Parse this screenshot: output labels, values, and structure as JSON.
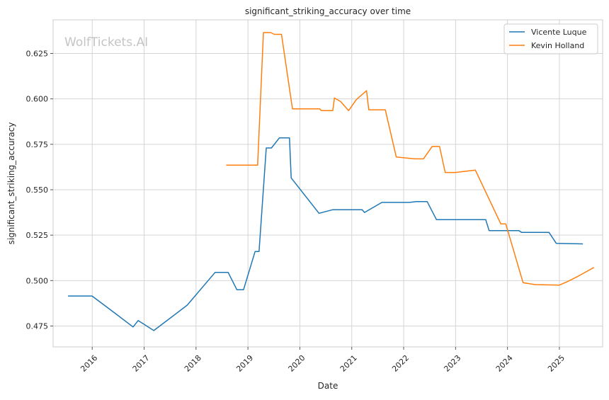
{
  "chart_data": {
    "type": "line",
    "title": "significant_striking_accuracy over time",
    "xlabel": "Date",
    "ylabel": "significant_striking_accuracy",
    "watermark": "WolfTickets.AI",
    "x_ticks": [
      "2016",
      "2017",
      "2018",
      "2019",
      "2020",
      "2021",
      "2022",
      "2023",
      "2024",
      "2025"
    ],
    "y_ticks": [
      "0.475",
      "0.500",
      "0.525",
      "0.550",
      "0.575",
      "0.600",
      "0.625"
    ],
    "xlim": [
      "2015-04-01",
      "2025-11-01"
    ],
    "ylim": [
      0.4635,
      0.6435
    ],
    "grid": true,
    "legend_position": "top-right",
    "colors": {
      "Vicente Luque": "#1f77b4",
      "Kevin Holland": "#ff7f0e"
    },
    "series": [
      {
        "name": "Vicente Luque",
        "color": "#1f77b4",
        "points": [
          [
            "2015-07-15",
            0.4915
          ],
          [
            "2015-12-31",
            0.4915
          ],
          [
            "2016-06-10",
            0.482
          ],
          [
            "2016-10-15",
            0.4745
          ],
          [
            "2016-11-20",
            0.478
          ],
          [
            "2017-03-10",
            0.4725
          ],
          [
            "2017-10-31",
            0.4865
          ],
          [
            "2018-05-15",
            0.5045
          ],
          [
            "2018-08-15",
            0.5045
          ],
          [
            "2018-10-15",
            0.495
          ],
          [
            "2018-12-01",
            0.495
          ],
          [
            "2019-02-20",
            0.516
          ],
          [
            "2019-03-20",
            0.516
          ],
          [
            "2019-05-10",
            0.573
          ],
          [
            "2019-06-15",
            0.573
          ],
          [
            "2019-08-10",
            0.5785
          ],
          [
            "2019-10-20",
            0.5785
          ],
          [
            "2019-11-01",
            0.5565
          ],
          [
            "2020-05-15",
            0.537
          ],
          [
            "2020-08-20",
            0.539
          ],
          [
            "2021-03-15",
            0.539
          ],
          [
            "2021-04-01",
            0.5375
          ],
          [
            "2021-08-01",
            0.543
          ],
          [
            "2022-02-10",
            0.543
          ],
          [
            "2022-04-01",
            0.5435
          ],
          [
            "2022-06-15",
            0.5435
          ],
          [
            "2022-08-20",
            0.5335
          ],
          [
            "2023-08-01",
            0.5335
          ],
          [
            "2023-08-25",
            0.5275
          ],
          [
            "2024-03-20",
            0.5275
          ],
          [
            "2024-04-10",
            0.5265
          ],
          [
            "2024-10-20",
            0.5265
          ],
          [
            "2024-12-10",
            0.5205
          ],
          [
            "2025-06-15",
            0.5202
          ]
        ]
      },
      {
        "name": "Kevin Holland",
        "color": "#ff7f0e",
        "points": [
          [
            "2018-08-01",
            0.5635
          ],
          [
            "2019-03-10",
            0.5635
          ],
          [
            "2019-04-20",
            0.6365
          ],
          [
            "2019-06-10",
            0.6365
          ],
          [
            "2019-07-05",
            0.6355
          ],
          [
            "2019-08-25",
            0.6355
          ],
          [
            "2019-11-10",
            0.5945
          ],
          [
            "2020-05-20",
            0.5945
          ],
          [
            "2020-06-01",
            0.5935
          ],
          [
            "2020-08-20",
            0.5935
          ],
          [
            "2020-09-01",
            0.6005
          ],
          [
            "2020-10-15",
            0.5985
          ],
          [
            "2020-12-10",
            0.5935
          ],
          [
            "2021-02-01",
            0.5995
          ],
          [
            "2021-04-15",
            0.6045
          ],
          [
            "2021-05-01",
            0.594
          ],
          [
            "2021-08-25",
            0.594
          ],
          [
            "2021-11-10",
            0.568
          ],
          [
            "2022-03-20",
            0.567
          ],
          [
            "2022-05-20",
            0.567
          ],
          [
            "2022-07-20",
            0.5738
          ],
          [
            "2022-09-10",
            0.5738
          ],
          [
            "2022-10-20",
            0.5595
          ],
          [
            "2023-01-01",
            0.5595
          ],
          [
            "2023-05-20",
            0.5608
          ],
          [
            "2023-11-15",
            0.5312
          ],
          [
            "2023-12-20",
            0.5312
          ],
          [
            "2024-04-20",
            0.4988
          ],
          [
            "2024-07-15",
            0.4978
          ],
          [
            "2025-01-01",
            0.4975
          ],
          [
            "2025-03-01",
            0.4995
          ],
          [
            "2025-05-15",
            0.5025
          ],
          [
            "2025-09-01",
            0.5072
          ]
        ]
      }
    ]
  }
}
